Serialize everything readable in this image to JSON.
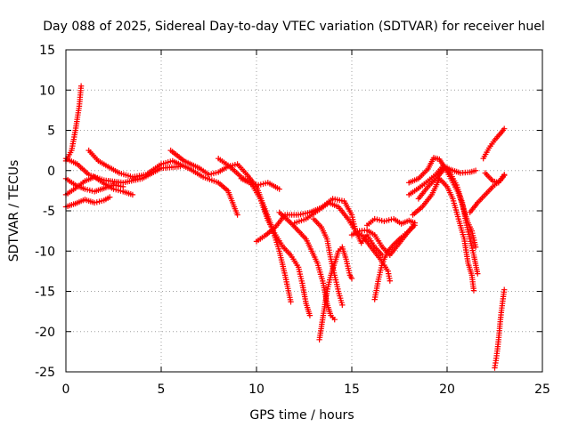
{
  "chart_data": {
    "type": "scatter",
    "title": "Day 088 of 2025, Sidereal Day-to-day VTEC variation (SDTVAR) for receiver huel",
    "xlabel": "GPS time / hours",
    "ylabel": "SDTVAR / TECUs",
    "xlim": [
      0,
      25
    ],
    "ylim": [
      -25,
      15
    ],
    "xticks": [
      0,
      5,
      10,
      15,
      20,
      25
    ],
    "yticks": [
      -25,
      -20,
      -15,
      -10,
      -5,
      0,
      5,
      10,
      15
    ],
    "grid": true,
    "marker": "+",
    "color": "#ff0000",
    "series": [
      {
        "name": "s1",
        "points": [
          [
            0,
            1.2
          ],
          [
            0.3,
            2.5
          ],
          [
            0.5,
            5
          ],
          [
            0.7,
            8
          ],
          [
            0.8,
            10.5
          ]
        ]
      },
      {
        "name": "s2",
        "points": [
          [
            0,
            1.5
          ],
          [
            0.6,
            0.8
          ],
          [
            1.2,
            -0.5
          ],
          [
            2,
            -1.2
          ],
          [
            3,
            -1.5
          ],
          [
            4,
            -1
          ],
          [
            5,
            0.3
          ],
          [
            6,
            0.5
          ]
        ]
      },
      {
        "name": "s3",
        "points": [
          [
            0,
            -1
          ],
          [
            0.5,
            -1.8
          ],
          [
            1,
            -2.3
          ],
          [
            1.5,
            -2.6
          ],
          [
            2,
            -2.2
          ],
          [
            2.5,
            -1.8
          ],
          [
            3,
            -2
          ]
        ]
      },
      {
        "name": "s4",
        "points": [
          [
            0,
            -3
          ],
          [
            0.5,
            -2.2
          ],
          [
            1,
            -1.3
          ],
          [
            1.5,
            -0.8
          ],
          [
            2,
            -1.6
          ],
          [
            2.5,
            -2.3
          ],
          [
            3,
            -2.6
          ],
          [
            3.5,
            -3
          ]
        ]
      },
      {
        "name": "s5",
        "points": [
          [
            0,
            -4.5
          ],
          [
            0.5,
            -4.1
          ],
          [
            1,
            -3.6
          ],
          [
            1.5,
            -4
          ],
          [
            2,
            -3.7
          ],
          [
            2.3,
            -3.3
          ]
        ]
      },
      {
        "name": "s6",
        "points": [
          [
            1.2,
            2.5
          ],
          [
            1.7,
            1.2
          ],
          [
            2.2,
            0.5
          ],
          [
            2.8,
            -0.3
          ],
          [
            3.5,
            -0.8
          ],
          [
            4.2,
            -0.5
          ],
          [
            5,
            0.8
          ],
          [
            5.6,
            1.2
          ],
          [
            6.5,
            0.2
          ],
          [
            7.2,
            -0.8
          ],
          [
            8,
            -1.5
          ],
          [
            8.5,
            -2.5
          ],
          [
            9,
            -5.5
          ]
        ]
      },
      {
        "name": "s7",
        "points": [
          [
            5.5,
            2.5
          ],
          [
            6.2,
            1.2
          ],
          [
            7,
            0.3
          ],
          [
            7.5,
            -0.5
          ],
          [
            8,
            -0.2
          ],
          [
            8.5,
            0.5
          ],
          [
            9,
            0.8
          ],
          [
            9.5,
            -0.5
          ],
          [
            10,
            -2
          ],
          [
            10.4,
            -4.5
          ],
          [
            10.8,
            -7
          ],
          [
            11.2,
            -10
          ],
          [
            11.5,
            -13
          ],
          [
            11.8,
            -16.3
          ]
        ]
      },
      {
        "name": "s8",
        "points": [
          [
            8,
            1.5
          ],
          [
            8.6,
            0.5
          ],
          [
            9.2,
            -0.8
          ],
          [
            9.7,
            -1.5
          ],
          [
            10.2,
            -3.5
          ],
          [
            10.6,
            -6.2
          ],
          [
            11,
            -8
          ],
          [
            11.4,
            -9.5
          ],
          [
            11.8,
            -10.5
          ],
          [
            12.2,
            -12
          ],
          [
            12.4,
            -14
          ],
          [
            12.6,
            -16.5
          ],
          [
            12.8,
            -18
          ]
        ]
      },
      {
        "name": "s9",
        "points": [
          [
            9.2,
            -1
          ],
          [
            9.7,
            -1.6
          ],
          [
            10.1,
            -1.8
          ],
          [
            10.6,
            -1.5
          ],
          [
            11.2,
            -2.3
          ]
        ]
      },
      {
        "name": "s10",
        "points": [
          [
            10,
            -8.8
          ],
          [
            10.5,
            -8
          ],
          [
            11,
            -7
          ],
          [
            11.5,
            -5.5
          ],
          [
            12.2,
            -5.5
          ],
          [
            12.8,
            -5.2
          ],
          [
            13.4,
            -4.6
          ],
          [
            14,
            -3.5
          ],
          [
            14.6,
            -3.8
          ],
          [
            15,
            -5.5
          ],
          [
            15.2,
            -7.5
          ],
          [
            15.6,
            -8.2
          ],
          [
            16,
            -9.5
          ],
          [
            16.5,
            -11
          ],
          [
            16.9,
            -12.5
          ],
          [
            17,
            -13.7
          ]
        ]
      },
      {
        "name": "s11",
        "points": [
          [
            12,
            -6.5
          ],
          [
            12.6,
            -6
          ],
          [
            13.2,
            -5
          ],
          [
            13.8,
            -4
          ],
          [
            14.3,
            -4.5
          ],
          [
            14.8,
            -6
          ],
          [
            15.2,
            -7.5
          ],
          [
            15.5,
            -9
          ],
          [
            15.8,
            -8
          ],
          [
            16.2,
            -9.5
          ],
          [
            16.6,
            -10.5
          ]
        ]
      },
      {
        "name": "s12",
        "points": [
          [
            11.2,
            -5.2
          ],
          [
            11.8,
            -6.5
          ],
          [
            12.2,
            -7.5
          ],
          [
            12.6,
            -8.5
          ],
          [
            12.9,
            -10
          ],
          [
            13.2,
            -11.5
          ],
          [
            13.5,
            -14
          ],
          [
            13.7,
            -16.5
          ],
          [
            13.9,
            -18
          ],
          [
            14.1,
            -18.5
          ]
        ]
      },
      {
        "name": "s13",
        "points": [
          [
            13,
            -6
          ],
          [
            13.4,
            -7
          ],
          [
            13.7,
            -8.5
          ],
          [
            13.9,
            -11
          ],
          [
            14.1,
            -13
          ],
          [
            14.3,
            -15
          ],
          [
            14.5,
            -16.7
          ]
        ]
      },
      {
        "name": "s14",
        "points": [
          [
            13.3,
            -21
          ],
          [
            13.5,
            -18
          ],
          [
            13.7,
            -15
          ],
          [
            13.9,
            -13
          ],
          [
            14.1,
            -11.5
          ],
          [
            14.3,
            -10
          ],
          [
            14.5,
            -9.5
          ],
          [
            14.7,
            -11
          ],
          [
            14.9,
            -13
          ],
          [
            15,
            -13.4
          ]
        ]
      },
      {
        "name": "s15",
        "points": [
          [
            15,
            -8
          ],
          [
            15.4,
            -7.5
          ],
          [
            15.8,
            -7.4
          ],
          [
            16.2,
            -8
          ],
          [
            16.6,
            -9.5
          ],
          [
            17,
            -10.5
          ],
          [
            17.5,
            -9
          ],
          [
            18,
            -7.5
          ],
          [
            18.3,
            -6.5
          ]
        ]
      },
      {
        "name": "s16",
        "points": [
          [
            15.8,
            -6.8
          ],
          [
            16.2,
            -6
          ],
          [
            16.7,
            -6.3
          ],
          [
            17.2,
            -6
          ],
          [
            17.6,
            -6.6
          ],
          [
            18,
            -6.2
          ],
          [
            18.3,
            -6.5
          ]
        ]
      },
      {
        "name": "s17",
        "points": [
          [
            16.2,
            -16
          ],
          [
            16.4,
            -13.5
          ],
          [
            16.6,
            -11.5
          ],
          [
            16.9,
            -10
          ],
          [
            17.2,
            -9.2
          ],
          [
            17.6,
            -8.3
          ],
          [
            18,
            -7.5
          ],
          [
            18.3,
            -6.8
          ]
        ]
      },
      {
        "name": "s18",
        "points": [
          [
            18,
            -1.5
          ],
          [
            18.5,
            -1
          ],
          [
            19,
            0.2
          ],
          [
            19.3,
            1.6
          ],
          [
            19.6,
            1.4
          ],
          [
            19.9,
            0.3
          ],
          [
            20.2,
            -1
          ],
          [
            20.6,
            -2.8
          ],
          [
            20.9,
            -5
          ],
          [
            21.1,
            -6.5
          ],
          [
            21.3,
            -7.5
          ],
          [
            21.5,
            -9.5
          ]
        ]
      },
      {
        "name": "s19",
        "points": [
          [
            18.2,
            -5.5
          ],
          [
            18.7,
            -4.5
          ],
          [
            19.2,
            -3
          ],
          [
            19.6,
            -1
          ],
          [
            20,
            -2
          ],
          [
            20.3,
            -3.5
          ],
          [
            20.6,
            -6
          ],
          [
            20.9,
            -8.5
          ],
          [
            21.1,
            -11.5
          ],
          [
            21.3,
            -13
          ],
          [
            21.4,
            -14.9
          ]
        ]
      },
      {
        "name": "s20",
        "points": [
          [
            18,
            -3
          ],
          [
            18.5,
            -2.2
          ],
          [
            19,
            -1.3
          ],
          [
            19.4,
            -0.5
          ],
          [
            19.8,
            0.6
          ],
          [
            20.2,
            0.1
          ],
          [
            20.7,
            -0.3
          ],
          [
            21.2,
            -0.2
          ],
          [
            21.5,
            0
          ]
        ]
      },
      {
        "name": "s21",
        "points": [
          [
            18.5,
            -3.5
          ],
          [
            19,
            -2
          ],
          [
            19.5,
            -0.8
          ],
          [
            19.9,
            0.4
          ],
          [
            20.2,
            -0.5
          ],
          [
            20.5,
            -1.8
          ],
          [
            20.8,
            -4
          ],
          [
            21,
            -6.5
          ],
          [
            21.2,
            -8.5
          ],
          [
            21.4,
            -10.5
          ],
          [
            21.6,
            -12.8
          ]
        ]
      },
      {
        "name": "s22",
        "points": [
          [
            21.2,
            -5.2
          ],
          [
            21.6,
            -4
          ],
          [
            22,
            -3
          ],
          [
            22.4,
            -2
          ],
          [
            22.8,
            -1.2
          ],
          [
            23,
            -0.6
          ]
        ]
      },
      {
        "name": "s23",
        "points": [
          [
            22,
            -0.3
          ],
          [
            22.4,
            -1.3
          ],
          [
            22.7,
            -1.5
          ],
          [
            23,
            -0.5
          ]
        ]
      },
      {
        "name": "s24",
        "points": [
          [
            21.9,
            1.5
          ],
          [
            22.2,
            2.8
          ],
          [
            22.5,
            3.8
          ],
          [
            22.8,
            4.6
          ],
          [
            23,
            5.2
          ]
        ]
      },
      {
        "name": "s25",
        "points": [
          [
            22.5,
            -24.5
          ],
          [
            22.6,
            -23
          ],
          [
            22.7,
            -21
          ],
          [
            22.8,
            -18.5
          ],
          [
            22.9,
            -16.5
          ],
          [
            23,
            -14.8
          ]
        ]
      }
    ]
  }
}
